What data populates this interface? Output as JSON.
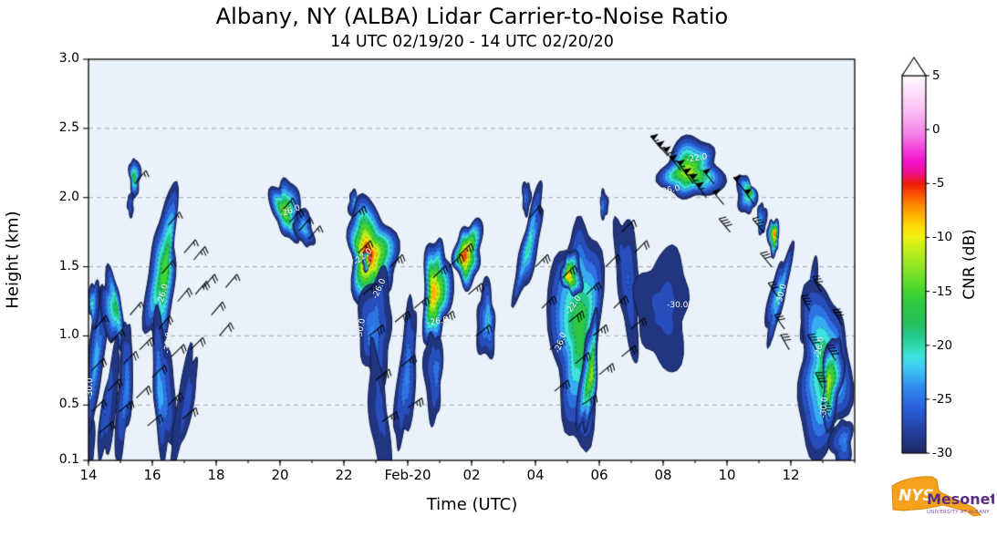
{
  "title": "Albany, NY (ALBA) Lidar Carrier-to-Noise Ratio",
  "subtitle": "14 UTC 02/19/20 - 14 UTC 02/20/20",
  "axes": {
    "x_label": "Time (UTC)",
    "y_label": "Height (km)",
    "x_range_hours": [
      14,
      38
    ],
    "y_range_km": [
      0.1,
      3.0
    ],
    "x_ticks": [
      {
        "t": 14,
        "label": "14"
      },
      {
        "t": 16,
        "label": "16"
      },
      {
        "t": 18,
        "label": "18"
      },
      {
        "t": 20,
        "label": "20"
      },
      {
        "t": 22,
        "label": "22"
      },
      {
        "t": 24,
        "label": "Feb-20"
      },
      {
        "t": 26,
        "label": "02"
      },
      {
        "t": 28,
        "label": "04"
      },
      {
        "t": 30,
        "label": "06"
      },
      {
        "t": 32,
        "label": "08"
      },
      {
        "t": 34,
        "label": "10"
      },
      {
        "t": 36,
        "label": "12"
      }
    ],
    "y_ticks": [
      {
        "h": 3.0,
        "label": "3.0"
      },
      {
        "h": 2.5,
        "label": "2.5"
      },
      {
        "h": 2.0,
        "label": "2.0"
      },
      {
        "h": 1.5,
        "label": "1.5"
      },
      {
        "h": 1.0,
        "label": "1.0"
      },
      {
        "h": 0.5,
        "label": "0.5"
      },
      {
        "h": 0.1,
        "label": "0.1"
      }
    ]
  },
  "colorbar": {
    "label": "CNR (dB)",
    "range": [
      -30,
      5
    ],
    "extend_max": true,
    "ticks": [
      "5",
      "0",
      "-5",
      "-10",
      "-15",
      "-20",
      "-25",
      "-30"
    ],
    "tick_values": [
      5,
      0,
      -5,
      -10,
      -15,
      -20,
      -25,
      -30
    ],
    "stops": [
      [
        -30,
        "#1d2a63"
      ],
      [
        -28,
        "#24409f"
      ],
      [
        -26,
        "#2b5cd8"
      ],
      [
        -24,
        "#2f86ee"
      ],
      [
        -23,
        "#38acf2"
      ],
      [
        -22,
        "#3ecdf2"
      ],
      [
        -21,
        "#3de3dc"
      ],
      [
        -20,
        "#30d9ae"
      ],
      [
        -19,
        "#25c787"
      ],
      [
        -18,
        "#27c25f"
      ],
      [
        -16,
        "#2fca3e"
      ],
      [
        -15,
        "#44d631"
      ],
      [
        -13,
        "#85e426"
      ],
      [
        -11,
        "#c6ef1b"
      ],
      [
        -10,
        "#eef312"
      ],
      [
        -9,
        "#fddc05"
      ],
      [
        -8,
        "#ffb400"
      ],
      [
        -7,
        "#ff8800"
      ],
      [
        -6,
        "#fc5202"
      ],
      [
        -5,
        "#ee1c09"
      ],
      [
        -4,
        "#ee1090"
      ],
      [
        -3,
        "#f413cb"
      ],
      [
        -2,
        "#f23ad8"
      ],
      [
        -1,
        "#f368e2"
      ],
      [
        0,
        "#f68ee9"
      ],
      [
        1,
        "#f9aaf0"
      ],
      [
        2,
        "#fbc3f5"
      ],
      [
        3,
        "#fdd8f9"
      ],
      [
        4,
        "#fee9fc"
      ],
      [
        5,
        "#ffffff"
      ]
    ]
  },
  "chart_data": {
    "type": "heatmap",
    "title": "Albany, NY (ALBA) Lidar Carrier-to-Noise Ratio",
    "xlabel": "Time (UTC)",
    "ylabel": "Height (km)",
    "value_label": "CNR (dB)",
    "x_unit": "hours, 14 = 14 UTC 02/19/20, 38 = 14 UTC 02/20/20",
    "grid_heights_km": [
      0.5,
      1.0,
      1.5,
      2.0,
      2.5
    ],
    "plot_bg": "#e9f1fa",
    "features_format": "[t_hours, height_km, halfwidth_hours, halfheight_km, core_cnr_db, tilt_deg]",
    "features": [
      [
        14.08,
        0.3,
        0.1,
        0.26,
        -28,
        0
      ],
      [
        14.22,
        0.82,
        0.24,
        0.55,
        -23,
        6
      ],
      [
        14.18,
        1.24,
        0.17,
        0.16,
        -21,
        0
      ],
      [
        14.75,
        1.18,
        0.33,
        0.28,
        -18,
        -8
      ],
      [
        14.65,
        0.5,
        0.22,
        0.42,
        -26,
        8
      ],
      [
        15.12,
        0.6,
        0.22,
        0.5,
        -24,
        4
      ],
      [
        15.45,
        2.15,
        0.17,
        0.14,
        -17,
        0
      ],
      [
        15.32,
        1.95,
        0.09,
        0.09,
        -26,
        0
      ],
      [
        16.3,
        1.45,
        0.42,
        0.58,
        -15,
        6
      ],
      [
        16.35,
        0.62,
        0.33,
        0.5,
        -23,
        -4
      ],
      [
        17.0,
        0.5,
        0.25,
        0.42,
        -27,
        10
      ],
      [
        20.2,
        1.92,
        0.45,
        0.22,
        -14,
        -10
      ],
      [
        20.75,
        1.78,
        0.28,
        0.14,
        -22,
        -12
      ],
      [
        22.3,
        1.95,
        0.15,
        0.1,
        -22,
        0
      ],
      [
        22.85,
        1.6,
        0.75,
        0.38,
        -5,
        -4
      ],
      [
        22.7,
        1.54,
        0.12,
        0.07,
        -1,
        0
      ],
      [
        23.0,
        1.05,
        0.5,
        0.42,
        -24,
        0
      ],
      [
        23.1,
        0.45,
        0.28,
        0.45,
        -27,
        -6
      ],
      [
        23.95,
        0.7,
        0.28,
        0.52,
        -24,
        5
      ],
      [
        24.9,
        1.32,
        0.45,
        0.38,
        -8,
        3
      ],
      [
        24.8,
        0.72,
        0.28,
        0.32,
        -25,
        0
      ],
      [
        25.9,
        1.6,
        0.42,
        0.24,
        -6,
        8
      ],
      [
        26.45,
        1.1,
        0.28,
        0.28,
        -22,
        0
      ],
      [
        27.8,
        1.65,
        0.26,
        0.42,
        -20,
        12
      ],
      [
        27.72,
        2.0,
        0.13,
        0.12,
        -25,
        0
      ],
      [
        29.3,
        1.05,
        0.8,
        0.8,
        -16,
        0
      ],
      [
        29.15,
        1.45,
        0.32,
        0.16,
        -9,
        -5
      ],
      [
        29.65,
        0.7,
        0.26,
        0.42,
        -13,
        6
      ],
      [
        30.15,
        1.95,
        0.12,
        0.1,
        -24,
        0
      ],
      [
        30.9,
        1.4,
        0.34,
        0.5,
        -26,
        -5
      ],
      [
        32.0,
        1.2,
        0.8,
        0.42,
        -27,
        0
      ],
      [
        32.9,
        2.2,
        0.95,
        0.22,
        -12,
        -9
      ],
      [
        34.6,
        2.02,
        0.3,
        0.14,
        -17,
        -10
      ],
      [
        35.1,
        1.85,
        0.14,
        0.11,
        -22,
        0
      ],
      [
        35.45,
        1.72,
        0.18,
        0.13,
        -7,
        0
      ],
      [
        35.6,
        1.3,
        0.24,
        0.34,
        -21,
        14
      ],
      [
        36.6,
        1.22,
        0.2,
        0.3,
        -24,
        8
      ],
      [
        37.0,
        0.75,
        0.8,
        0.62,
        -17,
        0
      ],
      [
        37.3,
        0.68,
        0.3,
        0.34,
        -12,
        5
      ],
      [
        37.6,
        0.22,
        0.34,
        0.18,
        -24,
        0
      ]
    ],
    "wind_barbs_format": "[t_hours, height_km, wind_from_deg, speed_kt]",
    "wind_barbs": [
      [
        14.1,
        0.45,
        45,
        20
      ],
      [
        14.1,
        0.75,
        45,
        20
      ],
      [
        14.2,
        1.05,
        40,
        15
      ],
      [
        14.35,
        0.3,
        50,
        20
      ],
      [
        14.6,
        0.6,
        45,
        20
      ],
      [
        14.7,
        0.95,
        40,
        15
      ],
      [
        14.95,
        0.45,
        50,
        25
      ],
      [
        15.1,
        0.8,
        45,
        20
      ],
      [
        15.3,
        1.15,
        40,
        15
      ],
      [
        15.5,
        0.55,
        45,
        20
      ],
      [
        15.6,
        0.9,
        45,
        25
      ],
      [
        15.85,
        0.35,
        50,
        20
      ],
      [
        16.0,
        0.7,
        45,
        20
      ],
      [
        16.2,
        1.05,
        40,
        20
      ],
      [
        16.3,
        1.45,
        40,
        15
      ],
      [
        16.5,
        0.5,
        45,
        25
      ],
      [
        16.6,
        0.85,
        45,
        20
      ],
      [
        16.8,
        1.25,
        40,
        20
      ],
      [
        17.0,
        1.6,
        40,
        15
      ],
      [
        16.95,
        0.4,
        50,
        20
      ],
      [
        17.2,
        0.9,
        45,
        20
      ],
      [
        17.35,
        1.3,
        40,
        25
      ],
      [
        15.45,
        2.1,
        40,
        15
      ],
      [
        16.5,
        1.8,
        40,
        15
      ],
      [
        17.3,
        1.55,
        40,
        25
      ],
      [
        17.6,
        1.35,
        40,
        20
      ],
      [
        17.85,
        1.15,
        40,
        20
      ],
      [
        18.1,
        1.0,
        40,
        20
      ],
      [
        18.3,
        1.35,
        40,
        15
      ],
      [
        20.05,
        1.9,
        40,
        20
      ],
      [
        20.3,
        1.82,
        40,
        20
      ],
      [
        20.6,
        1.76,
        40,
        15
      ],
      [
        20.9,
        1.7,
        40,
        15
      ],
      [
        22.25,
        1.85,
        45,
        25
      ],
      [
        22.45,
        1.6,
        45,
        25
      ],
      [
        22.6,
        1.3,
        50,
        25
      ],
      [
        22.8,
        1.0,
        50,
        30
      ],
      [
        23.0,
        0.68,
        50,
        25
      ],
      [
        23.2,
        0.38,
        55,
        25
      ],
      [
        23.45,
        1.5,
        45,
        25
      ],
      [
        23.6,
        1.1,
        50,
        30
      ],
      [
        23.8,
        0.78,
        50,
        25
      ],
      [
        24.0,
        0.48,
        55,
        25
      ],
      [
        24.2,
        1.2,
        50,
        25
      ],
      [
        24.8,
        1.42,
        45,
        25
      ],
      [
        25.0,
        1.1,
        50,
        25
      ],
      [
        25.3,
        1.5,
        45,
        25
      ],
      [
        25.6,
        1.58,
        45,
        25
      ],
      [
        25.9,
        1.3,
        50,
        25
      ],
      [
        26.15,
        1.0,
        50,
        20
      ],
      [
        27.8,
        1.85,
        40,
        20
      ],
      [
        28.0,
        1.5,
        45,
        25
      ],
      [
        28.2,
        1.2,
        45,
        25
      ],
      [
        28.45,
        0.9,
        50,
        25
      ],
      [
        28.6,
        0.6,
        50,
        25
      ],
      [
        28.85,
        1.42,
        45,
        25
      ],
      [
        29.05,
        1.1,
        50,
        30
      ],
      [
        29.25,
        0.8,
        50,
        25
      ],
      [
        29.45,
        0.5,
        55,
        25
      ],
      [
        29.6,
        1.3,
        45,
        25
      ],
      [
        29.8,
        1.0,
        50,
        25
      ],
      [
        30.0,
        0.72,
        50,
        25
      ],
      [
        30.2,
        1.5,
        45,
        20
      ],
      [
        30.45,
        1.2,
        45,
        25
      ],
      [
        30.7,
        0.85,
        50,
        20
      ],
      [
        31.0,
        1.05,
        50,
        20
      ],
      [
        30.7,
        1.75,
        45,
        20
      ],
      [
        31.1,
        1.6,
        45,
        20
      ],
      [
        31.95,
        2.35,
        320,
        55
      ],
      [
        32.15,
        2.3,
        320,
        55
      ],
      [
        32.35,
        2.26,
        320,
        60
      ],
      [
        32.55,
        2.2,
        320,
        55
      ],
      [
        32.75,
        2.16,
        325,
        55
      ],
      [
        32.95,
        2.1,
        325,
        60
      ],
      [
        33.15,
        2.06,
        325,
        55
      ],
      [
        33.35,
        2.0,
        325,
        55
      ],
      [
        33.6,
        2.1,
        320,
        50
      ],
      [
        33.9,
        1.95,
        320,
        50
      ],
      [
        34.1,
        1.75,
        320,
        40
      ],
      [
        34.55,
        2.05,
        320,
        50
      ],
      [
        34.85,
        1.95,
        325,
        50
      ],
      [
        35.15,
        1.75,
        320,
        35
      ],
      [
        35.4,
        1.5,
        320,
        30
      ],
      [
        35.6,
        1.28,
        325,
        30
      ],
      [
        35.8,
        1.05,
        325,
        30
      ],
      [
        35.95,
        0.9,
        330,
        30
      ],
      [
        36.6,
        1.18,
        330,
        35
      ],
      [
        36.8,
        0.9,
        330,
        40
      ],
      [
        37.0,
        0.62,
        335,
        40
      ],
      [
        37.2,
        0.4,
        335,
        35
      ],
      [
        37.4,
        0.82,
        330,
        40
      ],
      [
        37.6,
        1.08,
        330,
        35
      ],
      [
        36.95,
        1.32,
        330,
        35
      ]
    ],
    "contour_labels": [
      {
        "t": 14.06,
        "h": 0.62,
        "text": "-30.0",
        "rot": -90
      },
      {
        "t": 16.5,
        "h": 0.95,
        "text": "-30.0",
        "rot": -85
      },
      {
        "t": 16.33,
        "h": 1.3,
        "text": "-26.0",
        "rot": -75
      },
      {
        "t": 20.3,
        "h": 1.9,
        "text": "-26.0",
        "rot": -20
      },
      {
        "t": 22.55,
        "h": 1.05,
        "text": "-30.0",
        "rot": -80
      },
      {
        "t": 22.6,
        "h": 1.57,
        "text": "-22.0",
        "rot": -40
      },
      {
        "t": 23.12,
        "h": 1.34,
        "text": "-26.0",
        "rot": -65
      },
      {
        "t": 24.95,
        "h": 1.1,
        "text": "-26.0",
        "rot": -10
      },
      {
        "t": 28.8,
        "h": 0.95,
        "text": "-26.0",
        "rot": -70
      },
      {
        "t": 29.2,
        "h": 1.22,
        "text": "-22.0",
        "rot": -55
      },
      {
        "t": 32.45,
        "h": 1.22,
        "text": "-30.0",
        "rot": 0
      },
      {
        "t": 32.2,
        "h": 2.05,
        "text": "-26.0",
        "rot": -12
      },
      {
        "t": 33.05,
        "h": 2.28,
        "text": "-22.0",
        "rot": -10
      },
      {
        "t": 35.7,
        "h": 1.3,
        "text": "-30.0",
        "rot": -75
      },
      {
        "t": 36.9,
        "h": 0.92,
        "text": "-26.0",
        "rot": -80
      },
      {
        "t": 37.05,
        "h": 0.48,
        "text": "-30.0",
        "rot": -85
      }
    ]
  },
  "logo": {
    "nys": "NYS",
    "mesonet": "Mesonet",
    "tagline": "UNIVERSITY AT ALBANY",
    "state_color": "#f5a11c",
    "text_color": "#5a2d82"
  }
}
